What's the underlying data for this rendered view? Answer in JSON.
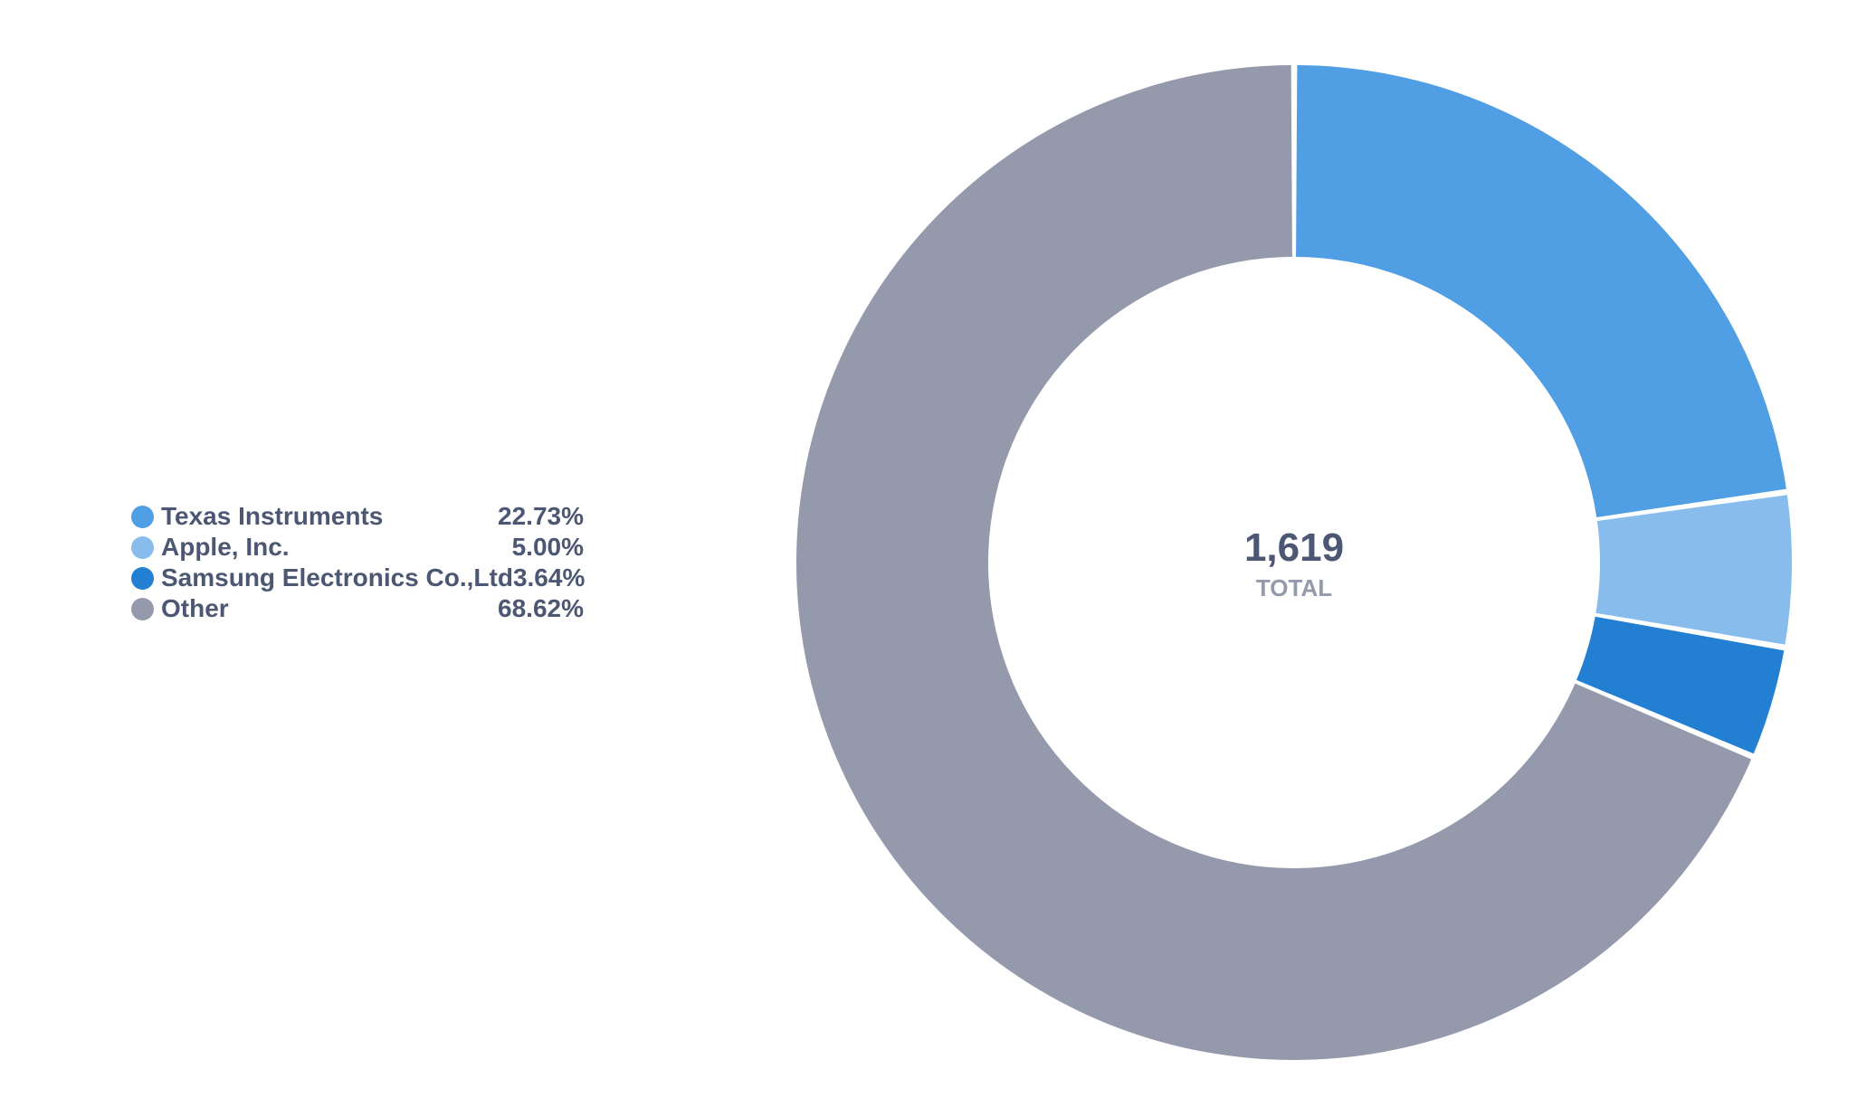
{
  "chart_data": {
    "type": "pie",
    "variant": "donut",
    "total": {
      "value": "1,619",
      "label": "TOTAL"
    },
    "series": [
      {
        "name": "Texas Instruments",
        "percent": 22.73,
        "label": "22.73%",
        "color": "#509ee3"
      },
      {
        "name": "Apple, Inc.",
        "percent": 5.0,
        "label": "5.00%",
        "color": "#88bcec"
      },
      {
        "name": "Samsung Electronics Co.,Ltd",
        "percent": 3.64,
        "label": "3.64%",
        "color": "#227fd2"
      },
      {
        "name": "Other",
        "percent": 68.62,
        "label": "68.62%",
        "color": "#949aab"
      }
    ],
    "legend_position": "left",
    "text_color": "#4c5773",
    "subtext_color": "#949aab"
  }
}
